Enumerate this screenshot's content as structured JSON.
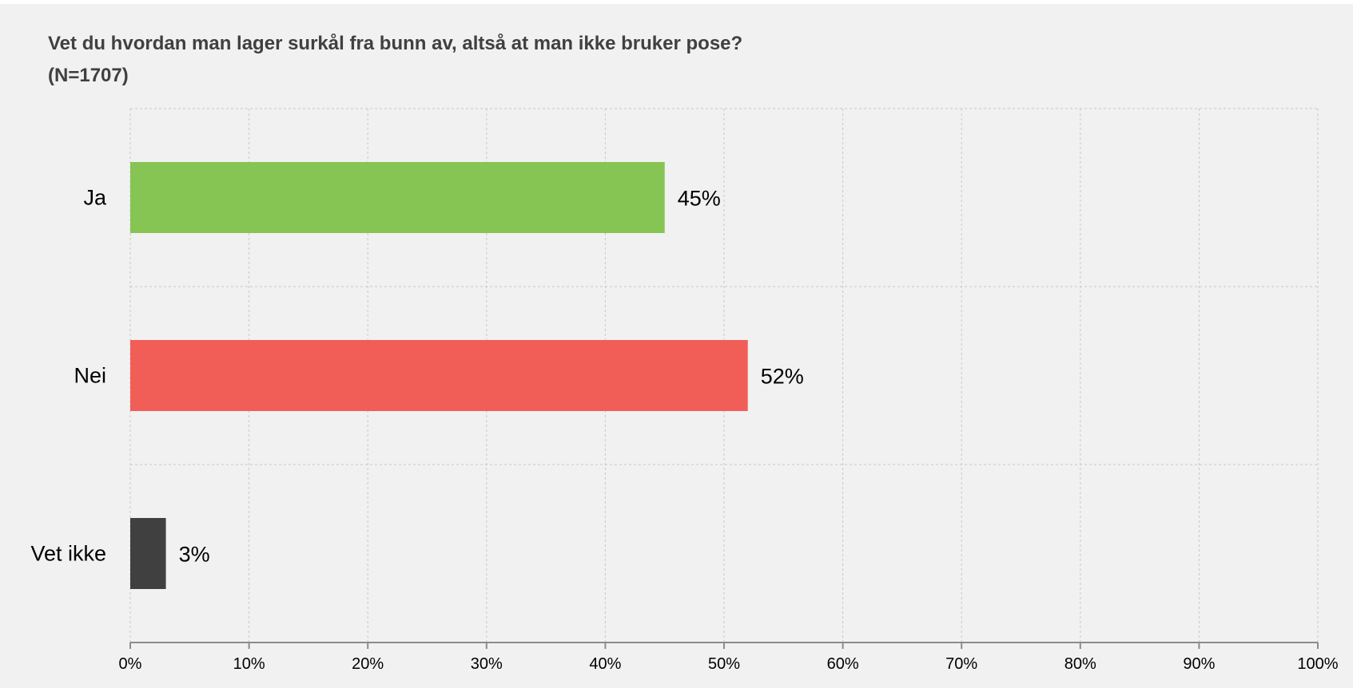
{
  "chart_data": {
    "type": "bar",
    "orientation": "horizontal",
    "title": "Vet du hvordan man lager surkål fra bunn av, altså at man ikke bruker pose?",
    "subtitle": "(N=1707)",
    "categories": [
      "Ja",
      "Nei",
      "Vet ikke"
    ],
    "values": [
      45,
      52,
      3
    ],
    "value_labels": [
      "45%",
      "52%",
      "3%"
    ],
    "bar_colors": [
      "#86c454",
      "#f15d57",
      "#404040"
    ],
    "xlim": [
      0,
      100
    ],
    "x_ticks": [
      0,
      10,
      20,
      30,
      40,
      50,
      60,
      70,
      80,
      90,
      100
    ],
    "x_tick_labels": [
      "0%",
      "10%",
      "20%",
      "30%",
      "40%",
      "50%",
      "60%",
      "70%",
      "80%",
      "90%",
      "100%"
    ],
    "xlabel": "",
    "ylabel": "",
    "grid": true,
    "legend": "none"
  }
}
